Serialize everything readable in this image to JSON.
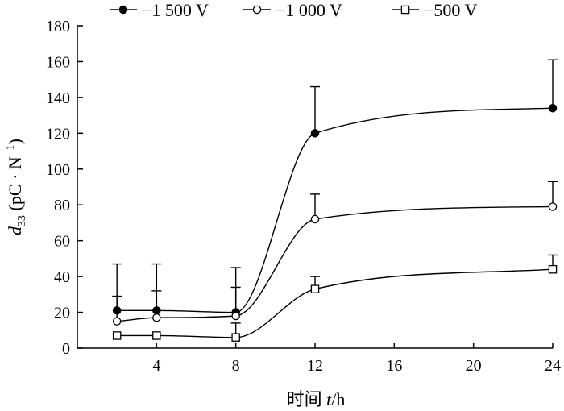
{
  "chart_data": {
    "type": "line",
    "title": "",
    "xlabel": {
      "prefix": "时间 ",
      "var": "t",
      "suffix": "/h"
    },
    "ylabel": {
      "var": "d",
      "sub": "33",
      "unit_open": " (pC · N",
      "sup": "−1",
      "unit_close": ")"
    },
    "x": [
      2,
      4,
      8,
      12,
      24
    ],
    "xlim": [
      0,
      24
    ],
    "ylim": [
      0,
      180
    ],
    "xticks": [
      4,
      8,
      12,
      16,
      20,
      24
    ],
    "yticks": [
      0,
      20,
      40,
      60,
      80,
      100,
      120,
      140,
      160,
      180
    ],
    "grid": false,
    "legend_position": "top",
    "series": [
      {
        "name": "−1 500 V",
        "marker": "filled-circle",
        "values": [
          21,
          21,
          20,
          120,
          134
        ],
        "errors": [
          26,
          26,
          25,
          26,
          27
        ]
      },
      {
        "name": "−1 000 V",
        "marker": "open-circle",
        "values": [
          15,
          17,
          18,
          72,
          79
        ],
        "errors": [
          14,
          15,
          16,
          14,
          14
        ]
      },
      {
        "name": "−500 V",
        "marker": "open-square",
        "values": [
          7,
          7,
          6,
          33,
          44
        ],
        "errors": [
          0,
          0,
          8,
          7,
          8
        ]
      }
    ]
  }
}
